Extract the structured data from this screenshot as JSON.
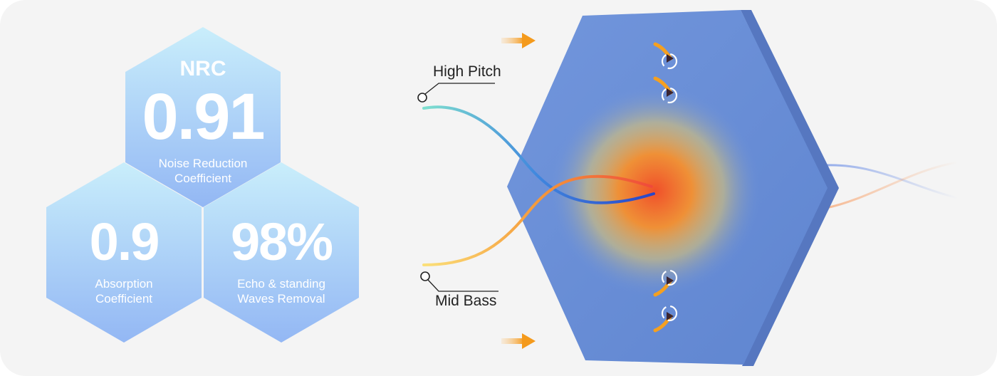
{
  "nrc": {
    "label": "NRC",
    "value": "0.91",
    "caption_line1": "Noise Reduction",
    "caption_line2": "Coefficient"
  },
  "absorption": {
    "value": "0.9",
    "caption_line1": "Absorption",
    "caption_line2": "Coefficient"
  },
  "echo": {
    "value": "98%",
    "caption_line1": "Echo & standing",
    "caption_line2": "Waves Removal"
  },
  "callouts": {
    "high_pitch": "High Pitch",
    "mid_bass": "Mid Bass"
  },
  "colors": {
    "hex_light": "#c7ebfb",
    "hex_dark": "#92b8f3",
    "panel_blue": "#6a8fd6",
    "arrow_orange": "#f5a020",
    "wave_high": "#5fd0c6",
    "wave_bass": "#f7c84a"
  }
}
